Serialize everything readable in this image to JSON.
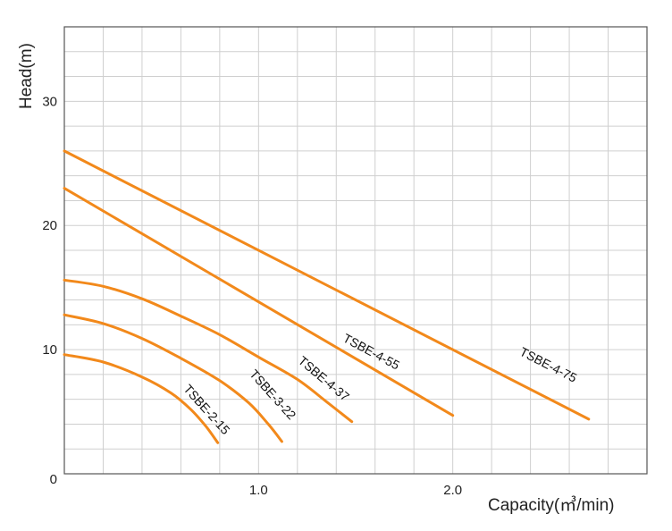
{
  "chart_data": {
    "type": "line",
    "title": "",
    "xlabel": "Capacity(㎥/min)",
    "ylabel": "Head(m)",
    "xlim": [
      0,
      3.0
    ],
    "ylim": [
      0,
      36
    ],
    "x_ticks": [
      {
        "value": 1.0,
        "label": "1.0"
      },
      {
        "value": 2.0,
        "label": "2.0"
      }
    ],
    "y_ticks": [
      {
        "value": 10,
        "label": "10"
      },
      {
        "value": 20,
        "label": "20"
      },
      {
        "value": 30,
        "label": "30"
      }
    ],
    "origin_label": "0",
    "grid": true,
    "line_color": "#f2891b",
    "series": [
      {
        "name": "TSBE-2-15",
        "points": [
          [
            0.0,
            9.6
          ],
          [
            0.2,
            9.0
          ],
          [
            0.4,
            7.8
          ],
          [
            0.55,
            6.5
          ],
          [
            0.65,
            5.2
          ],
          [
            0.73,
            3.8
          ],
          [
            0.79,
            2.5
          ]
        ]
      },
      {
        "name": "TSBE-3-22",
        "points": [
          [
            0.0,
            12.8
          ],
          [
            0.2,
            12.1
          ],
          [
            0.4,
            10.9
          ],
          [
            0.6,
            9.3
          ],
          [
            0.8,
            7.5
          ],
          [
            0.95,
            5.7
          ],
          [
            1.05,
            4.0
          ],
          [
            1.12,
            2.6
          ]
        ]
      },
      {
        "name": "TSBE-4-37",
        "points": [
          [
            0.0,
            15.6
          ],
          [
            0.2,
            15.1
          ],
          [
            0.4,
            14.1
          ],
          [
            0.6,
            12.7
          ],
          [
            0.8,
            11.2
          ],
          [
            1.0,
            9.4
          ],
          [
            1.2,
            7.6
          ],
          [
            1.35,
            5.8
          ],
          [
            1.48,
            4.2
          ]
        ]
      },
      {
        "name": "TSBE-4-55",
        "points": [
          [
            0.0,
            23.0
          ],
          [
            2.0,
            4.7
          ]
        ]
      },
      {
        "name": "TSBE-4-75",
        "points": [
          [
            0.0,
            26.0
          ],
          [
            2.7,
            4.4
          ]
        ]
      }
    ]
  }
}
